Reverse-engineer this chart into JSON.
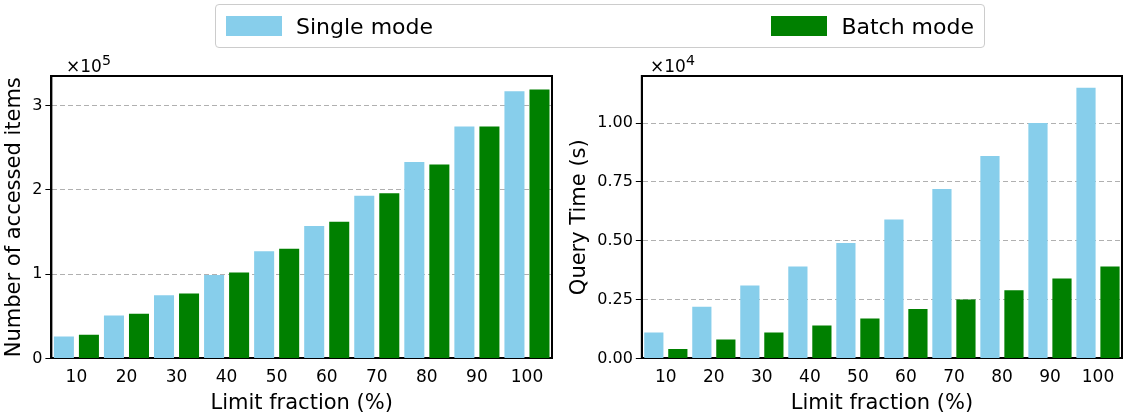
{
  "chart_data": [
    {
      "type": "bar",
      "xlabel": "Limit fraction (%)",
      "ylabel": "Number of accessed items",
      "categories": [
        "10",
        "20",
        "30",
        "40",
        "50",
        "60",
        "70",
        "80",
        "90",
        "100"
      ],
      "series": [
        {
          "name": "Single mode",
          "color": "#87ceeb",
          "values": [
            0.26,
            0.51,
            0.75,
            0.99,
            1.27,
            1.57,
            1.93,
            2.33,
            2.75,
            3.17
          ]
        },
        {
          "name": "Batch mode",
          "color": "#008000",
          "values": [
            0.28,
            0.53,
            0.77,
            1.02,
            1.3,
            1.62,
            1.96,
            2.3,
            2.75,
            3.19
          ]
        }
      ],
      "ylim": [
        0,
        3.35
      ],
      "yticks": [
        0,
        1,
        2,
        3
      ],
      "annotations": [
        "×10$^{5}$"
      ],
      "grid": "y",
      "legend": "top"
    },
    {
      "type": "bar",
      "xlabel": "Limit fraction (%)",
      "ylabel": "Query Time (s)",
      "categories": [
        "10",
        "20",
        "30",
        "40",
        "50",
        "60",
        "70",
        "80",
        "90",
        "100"
      ],
      "series": [
        {
          "color": "#87ceeb",
          "values": [
            0.11,
            0.22,
            0.31,
            0.39,
            0.49,
            0.59,
            0.72,
            0.86,
            1.0,
            1.15
          ]
        },
        {
          "color": "#008000",
          "values": [
            0.04,
            0.08,
            0.11,
            0.14,
            0.17,
            0.21,
            0.25,
            0.29,
            0.34,
            0.39
          ]
        }
      ],
      "ylim": [
        0,
        1.2
      ],
      "yticks": [
        {
          "value": 0,
          "label": "0.00"
        },
        0.25,
        {
          "value": 0.5,
          "label": "0.50"
        },
        0.75,
        {
          "value": 1,
          "label": "1.00"
        }
      ],
      "annotations": [
        "×10$^{4}$"
      ],
      "grid": "y"
    }
  ]
}
